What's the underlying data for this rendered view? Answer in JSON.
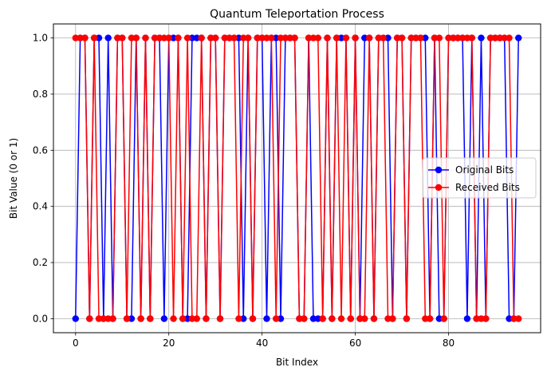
{
  "chart_data": {
    "type": "line",
    "title": "Quantum Teleportation Process",
    "xlabel": "Bit Index",
    "ylabel": "Bit Value (0 or 1)",
    "xlim": [
      -4.75,
      99.75
    ],
    "ylim": [
      -0.05,
      1.05
    ],
    "xticks": [
      0,
      20,
      40,
      60,
      80
    ],
    "yticks": [
      0.0,
      0.2,
      0.4,
      0.6,
      0.8,
      1.0
    ],
    "xtick_labels": [
      "0",
      "20",
      "40",
      "60",
      "80"
    ],
    "ytick_labels": [
      "0.0",
      "0.2",
      "0.4",
      "0.6",
      "0.8",
      "1.0"
    ],
    "grid": true,
    "legend_position": "center-right",
    "series": [
      {
        "name": "Original Bits",
        "color": "#0000ff",
        "marker": "circle",
        "values": [
          0,
          1,
          1,
          0,
          1,
          1,
          0,
          1,
          0,
          1,
          1,
          0,
          0,
          1,
          0,
          1,
          0,
          1,
          1,
          0,
          1,
          1,
          1,
          0,
          0,
          1,
          1,
          1,
          0,
          1,
          1,
          0,
          1,
          1,
          1,
          1,
          0,
          1,
          0,
          1,
          1,
          0,
          1,
          1,
          0,
          1,
          1,
          1,
          0,
          0,
          1,
          0,
          0,
          0,
          1,
          0,
          1,
          1,
          1,
          0,
          1,
          0,
          1,
          1,
          0,
          1,
          1,
          1,
          0,
          1,
          1,
          0,
          1,
          1,
          1,
          1,
          0,
          1,
          0,
          0,
          1,
          1,
          1,
          1,
          0,
          1,
          0,
          1,
          0,
          1,
          1,
          1,
          1,
          0,
          0,
          1
        ]
      },
      {
        "name": "Received Bits",
        "color": "#ff0000",
        "marker": "circle",
        "values": [
          1,
          1,
          1,
          0,
          1,
          0,
          0,
          0,
          0,
          1,
          1,
          0,
          1,
          1,
          0,
          1,
          0,
          1,
          1,
          1,
          1,
          0,
          1,
          0,
          1,
          0,
          0,
          1,
          0,
          1,
          1,
          0,
          1,
          1,
          1,
          0,
          1,
          1,
          0,
          1,
          1,
          1,
          1,
          0,
          1,
          1,
          1,
          1,
          0,
          0,
          1,
          1,
          1,
          0,
          1,
          0,
          1,
          0,
          1,
          0,
          1,
          0,
          0,
          1,
          0,
          1,
          1,
          0,
          0,
          1,
          1,
          0,
          1,
          1,
          1,
          0,
          0,
          1,
          1,
          0,
          1,
          1,
          1,
          1,
          1,
          1,
          0,
          0,
          0,
          1,
          1,
          1,
          1,
          1,
          0,
          0
        ]
      }
    ]
  }
}
